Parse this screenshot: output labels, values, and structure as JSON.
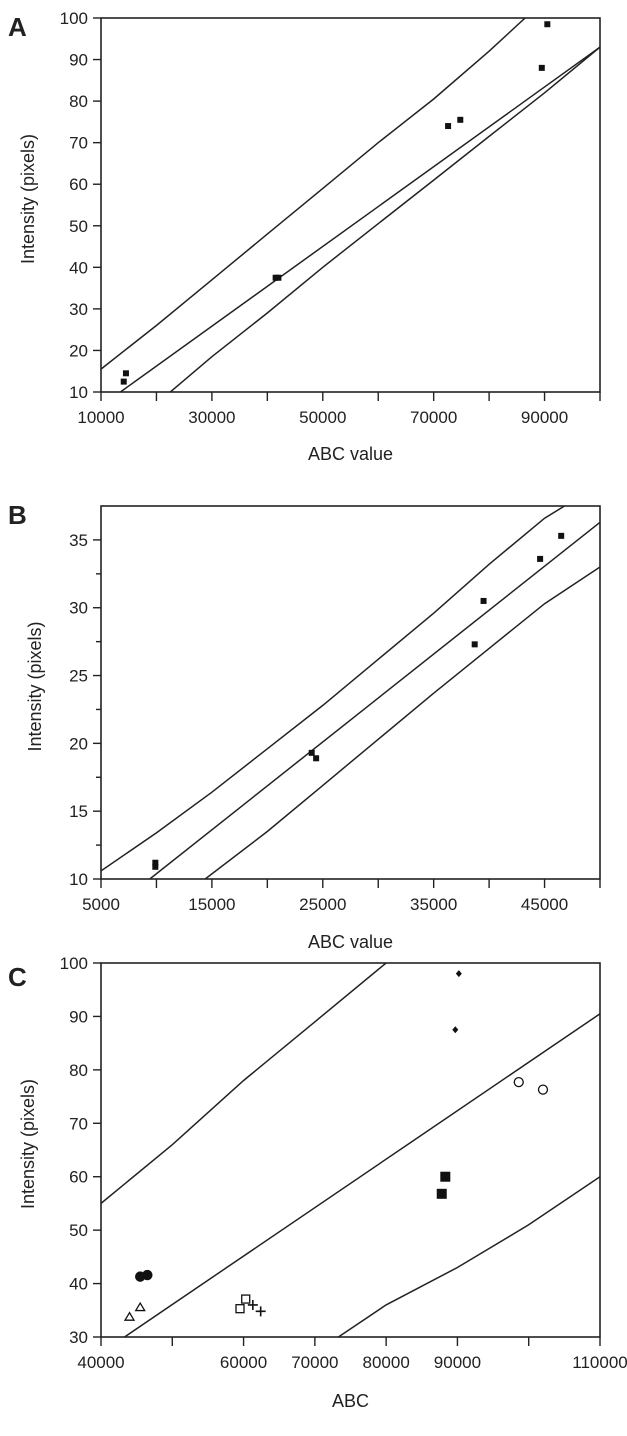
{
  "chart_data": [
    {
      "type": "scatter",
      "panel_label": "A",
      "xlabel": "ABC value",
      "ylabel": "Intensity (pixels)",
      "xlim": [
        10000,
        100000
      ],
      "ylim": [
        10,
        100
      ],
      "xticks_major": [
        10000,
        30000,
        50000,
        70000,
        90000
      ],
      "xticks_minor": [
        20000,
        40000,
        60000,
        80000,
        100000
      ],
      "yticks": [
        10,
        20,
        30,
        40,
        50,
        60,
        70,
        80,
        90,
        100
      ],
      "marker": "small-square",
      "points": [
        {
          "x": 14100,
          "y": 12.5
        },
        {
          "x": 14500,
          "y": 14.5
        },
        {
          "x": 41500,
          "y": 37.5
        },
        {
          "x": 42000,
          "y": 37.5
        },
        {
          "x": 72600,
          "y": 74
        },
        {
          "x": 74800,
          "y": 75.5
        },
        {
          "x": 89500,
          "y": 88
        },
        {
          "x": 90500,
          "y": 98.5
        }
      ],
      "bands": {
        "center": [
          [
            13500,
            10
          ],
          [
            100000,
            93
          ]
        ],
        "upper": [
          [
            10000,
            15.5
          ],
          [
            20000,
            26
          ],
          [
            30000,
            37
          ],
          [
            40000,
            48
          ],
          [
            50000,
            59
          ],
          [
            60000,
            70
          ],
          [
            70000,
            80.5
          ],
          [
            80000,
            92
          ],
          [
            86500,
            100
          ]
        ],
        "lower": [
          [
            22500,
            10
          ],
          [
            30000,
            18.5
          ],
          [
            40000,
            29
          ],
          [
            50000,
            40
          ],
          [
            60000,
            50.5
          ],
          [
            70000,
            61
          ],
          [
            80000,
            71.5
          ],
          [
            90000,
            82
          ],
          [
            100000,
            93
          ]
        ]
      }
    },
    {
      "type": "scatter",
      "panel_label": "B",
      "xlabel": "ABC value",
      "ylabel": "Intensity (pixels)",
      "xlim": [
        5000,
        50000
      ],
      "ylim": [
        10,
        37.5
      ],
      "xticks_major": [
        5000,
        15000,
        25000,
        35000,
        45000
      ],
      "xticks_minor": [
        10000,
        20000,
        30000,
        40000,
        50000
      ],
      "yticks": [
        10,
        15,
        20,
        25,
        30,
        35
      ],
      "marker": "small-square",
      "points": [
        {
          "x": 9900,
          "y": 10.9
        },
        {
          "x": 9900,
          "y": 11.2
        },
        {
          "x": 24000,
          "y": 19.3
        },
        {
          "x": 24400,
          "y": 18.9
        },
        {
          "x": 38700,
          "y": 27.3
        },
        {
          "x": 39500,
          "y": 30.5
        },
        {
          "x": 44600,
          "y": 33.6
        },
        {
          "x": 46500,
          "y": 35.3
        }
      ],
      "bands": {
        "center": [
          [
            9400,
            10
          ],
          [
            50000,
            36.3
          ]
        ],
        "upper": [
          [
            5000,
            10.6
          ],
          [
            10000,
            13.4
          ],
          [
            15000,
            16.4
          ],
          [
            20000,
            19.6
          ],
          [
            25000,
            22.8
          ],
          [
            30000,
            26.2
          ],
          [
            35000,
            29.6
          ],
          [
            40000,
            33.2
          ],
          [
            45000,
            36.6
          ],
          [
            46800,
            37.5
          ]
        ],
        "lower": [
          [
            14400,
            10
          ],
          [
            20000,
            13.5
          ],
          [
            25000,
            16.9
          ],
          [
            30000,
            20.3
          ],
          [
            35000,
            23.7
          ],
          [
            40000,
            27
          ],
          [
            45000,
            30.3
          ],
          [
            50000,
            33
          ]
        ]
      }
    },
    {
      "type": "scatter",
      "panel_label": "C",
      "xlabel": "ABC",
      "ylabel": "Intensity (pixels)",
      "xlim": [
        40000,
        110000
      ],
      "ylim": [
        30,
        100
      ],
      "xticks_major": [
        40000,
        60000,
        70000,
        80000,
        90000,
        110000
      ],
      "xticks_minor": [
        50000,
        100000
      ],
      "yticks": [
        30,
        40,
        50,
        60,
        70,
        80,
        90,
        100
      ],
      "points": [
        {
          "x": 44000,
          "y": 33.8,
          "marker": "triangle-open"
        },
        {
          "x": 45500,
          "y": 35.6,
          "marker": "triangle-open"
        },
        {
          "x": 45500,
          "y": 41.3,
          "marker": "circle-filled"
        },
        {
          "x": 46500,
          "y": 41.6,
          "marker": "circle-filled"
        },
        {
          "x": 59500,
          "y": 35.3,
          "marker": "square-open"
        },
        {
          "x": 60300,
          "y": 37.1,
          "marker": "square-open"
        },
        {
          "x": 61300,
          "y": 36,
          "marker": "plus"
        },
        {
          "x": 62400,
          "y": 34.8,
          "marker": "plus"
        },
        {
          "x": 87800,
          "y": 56.8,
          "marker": "square-filled"
        },
        {
          "x": 88300,
          "y": 60,
          "marker": "square-filled"
        },
        {
          "x": 89700,
          "y": 87.5,
          "marker": "diamond-filled"
        },
        {
          "x": 90200,
          "y": 98,
          "marker": "diamond-filled"
        },
        {
          "x": 98600,
          "y": 77.7,
          "marker": "circle-open"
        },
        {
          "x": 102000,
          "y": 76.3,
          "marker": "circle-open"
        }
      ],
      "bands": {
        "center": [
          [
            43300,
            30
          ],
          [
            110000,
            90.5
          ]
        ],
        "upper": [
          [
            40000,
            55
          ],
          [
            50000,
            66
          ],
          [
            60000,
            78
          ],
          [
            70000,
            89
          ],
          [
            80000,
            100
          ]
        ],
        "lower": [
          [
            73300,
            30
          ],
          [
            80000,
            36
          ],
          [
            90000,
            43
          ],
          [
            100000,
            51
          ],
          [
            110000,
            60
          ]
        ]
      }
    }
  ]
}
